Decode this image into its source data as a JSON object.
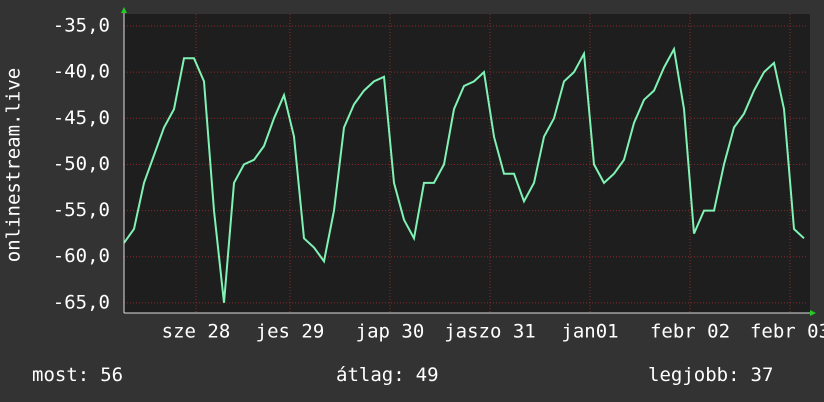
{
  "chart_data": {
    "type": "line",
    "y_label": "onlinestream.live",
    "color": "#7ff2b4",
    "grid": true,
    "x": [
      0,
      1,
      2,
      3,
      4,
      5,
      6,
      7,
      8,
      9,
      10,
      11,
      12,
      13,
      14,
      15,
      16,
      17,
      18,
      19,
      20,
      21,
      22,
      23,
      24,
      25,
      26,
      27,
      28,
      29,
      30,
      31,
      32,
      33,
      34,
      35,
      36,
      37,
      38,
      39,
      40,
      41,
      42,
      43,
      44,
      45,
      46,
      47,
      48,
      49,
      50,
      51,
      52,
      53,
      54,
      55,
      56,
      57,
      58,
      59,
      60,
      61,
      62,
      63,
      64,
      65,
      66,
      67,
      68
    ],
    "values": [
      -58.5,
      -57,
      -52,
      -49,
      -46,
      -44,
      -38.5,
      -38.5,
      -41,
      -55,
      -65,
      -52,
      -50,
      -49.5,
      -48,
      -45,
      -42.5,
      -47,
      -58,
      -59,
      -60.5,
      -55,
      -46,
      -43.5,
      -42,
      -41,
      -40.5,
      -52,
      -56,
      -58,
      -52,
      -52,
      -50,
      -44,
      -41.5,
      -41,
      -40,
      -47,
      -51,
      -51,
      -54,
      -52,
      -47,
      -45,
      -41,
      -40,
      -38,
      -50,
      -52,
      -51,
      -49.5,
      -45.5,
      -43,
      -42,
      -39.5,
      -37.5,
      -44,
      -57.5,
      -55,
      -55,
      -50,
      -46,
      -44.5,
      -42,
      -40,
      -39,
      -44,
      -57,
      -58
    ],
    "xlim": [
      0,
      68.4
    ],
    "xticks": [
      {
        "value": 7.2,
        "label": "sze 28"
      },
      {
        "value": 16.6,
        "label": "jes 29"
      },
      {
        "value": 26.6,
        "label": "jap 30"
      },
      {
        "value": 36.6,
        "label": "jaszo 31"
      },
      {
        "value": 46.6,
        "label": "jan01"
      },
      {
        "value": 56.6,
        "label": "febr 02"
      },
      {
        "value": 66.6,
        "label": "febr 03"
      }
    ],
    "ylim": [
      -66.1,
      -33.7
    ],
    "yticks": [
      {
        "value": -35,
        "label": "-35,0"
      },
      {
        "value": -40,
        "label": "-40,0"
      },
      {
        "value": -45,
        "label": "-45,0"
      },
      {
        "value": -50,
        "label": "-50,0"
      },
      {
        "value": -55,
        "label": "-55,0"
      },
      {
        "value": -60,
        "label": "-60,0"
      },
      {
        "value": -65,
        "label": "-65,0"
      }
    ],
    "stats": [
      {
        "label": "most:",
        "value": 56
      },
      {
        "label": "átlag:",
        "value": 49
      },
      {
        "label": "legjobb:",
        "value": 37
      }
    ]
  }
}
